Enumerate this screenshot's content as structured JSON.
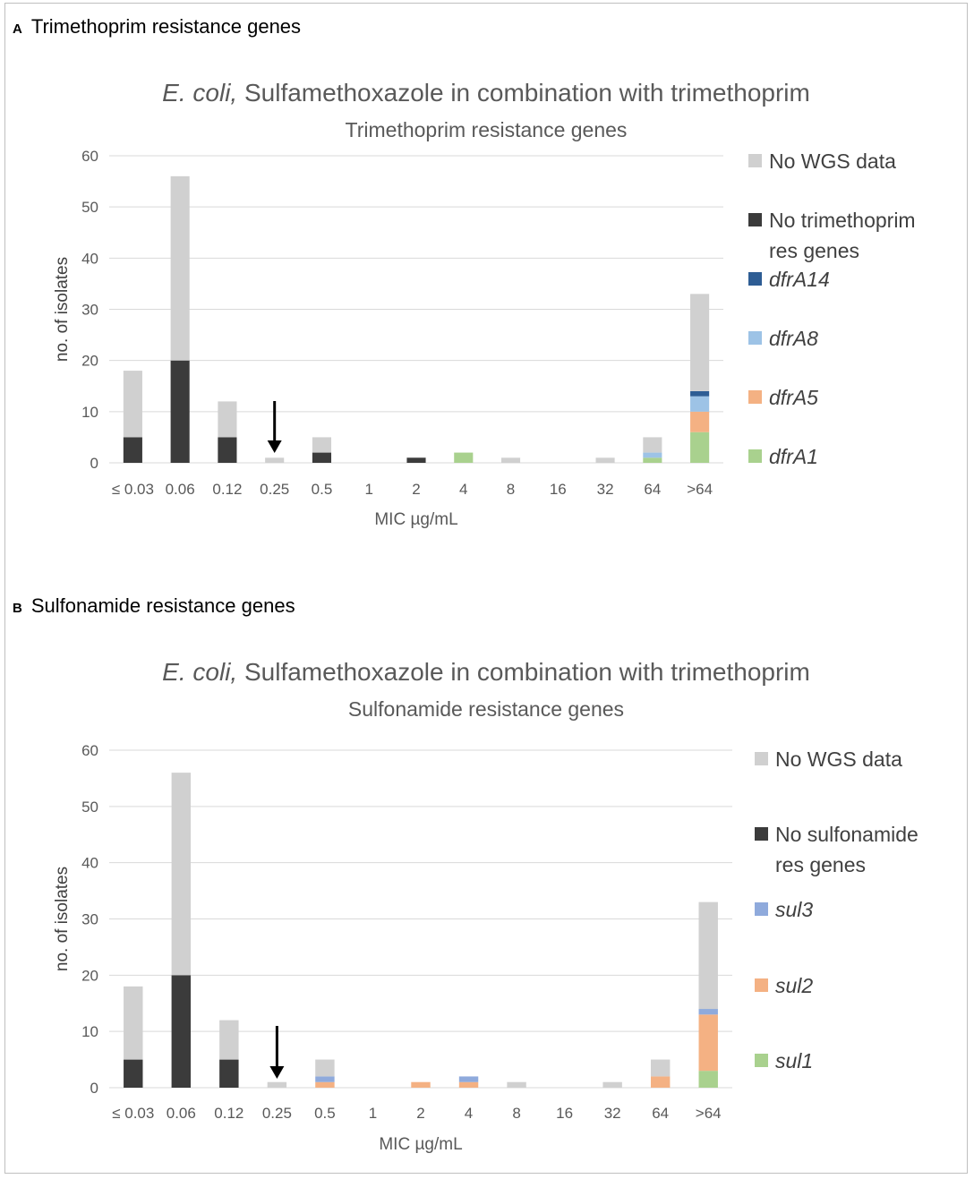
{
  "panels": [
    {
      "letter": "A",
      "heading": "Trimethoprim resistance genes",
      "chart_data": {
        "type": "bar",
        "stacked": true,
        "title_italic": "E. coli,",
        "title_rest": " Sulfamethoxazole in combination with trimethoprim",
        "subtitle": "Trimethoprim resistance genes",
        "xlabel": "MIC µg/mL",
        "ylabel": "no. of isolates",
        "ylim": [
          0,
          60
        ],
        "yticks": [
          0,
          10,
          20,
          30,
          40,
          50,
          60
        ],
        "categories": [
          "≤ 0.03",
          "0.06",
          "0.12",
          "0.25",
          "0.5",
          "1",
          "2",
          "4",
          "8",
          "16",
          "32",
          "64",
          ">64"
        ],
        "series": [
          {
            "name": "dfrA1",
            "italic": true,
            "color": "#a9d18e",
            "values": [
              0,
              0,
              0,
              0,
              0,
              0,
              0,
              2,
              0,
              0,
              0,
              1,
              6
            ]
          },
          {
            "name": "dfrA5",
            "italic": true,
            "color": "#f4b183",
            "values": [
              0,
              0,
              0,
              0,
              0,
              0,
              0,
              0,
              0,
              0,
              0,
              0,
              4
            ]
          },
          {
            "name": "dfrA8",
            "italic": true,
            "color": "#9dc3e6",
            "values": [
              0,
              0,
              0,
              0,
              0,
              0,
              0,
              0,
              0,
              0,
              0,
              1,
              3
            ]
          },
          {
            "name": "dfrA14",
            "italic": true,
            "color": "#2e5d94",
            "values": [
              0,
              0,
              0,
              0,
              0,
              0,
              0,
              0,
              0,
              0,
              0,
              0,
              1
            ]
          },
          {
            "name": "No trimethoprim res genes",
            "italic": false,
            "color": "#3b3b3b",
            "values": [
              5,
              20,
              5,
              0,
              2,
              0,
              1,
              0,
              0,
              0,
              0,
              0,
              0
            ]
          },
          {
            "name": "No WGS data",
            "italic": false,
            "color": "#d0d0d0",
            "values": [
              13,
              36,
              7,
              1,
              3,
              0,
              0,
              0,
              1,
              0,
              1,
              3,
              19
            ]
          }
        ],
        "legend_order": [
          "No WGS data",
          "No trimethoprim res genes",
          "dfrA14",
          "dfrA8",
          "dfrA5",
          "dfrA1"
        ],
        "legend_placement": "right",
        "annotation": {
          "type": "arrow",
          "category": "0.25",
          "meaning": "breakpoint"
        }
      }
    },
    {
      "letter": "B",
      "heading": "Sulfonamide resistance genes",
      "chart_data": {
        "type": "bar",
        "stacked": true,
        "title_italic": "E. coli,",
        "title_rest": " Sulfamethoxazole in combination with trimethoprim",
        "subtitle": "Sulfonamide resistance genes",
        "xlabel": "MIC µg/mL",
        "ylabel": "no. of isolates",
        "ylim": [
          0,
          60
        ],
        "yticks": [
          0,
          10,
          20,
          30,
          40,
          50,
          60
        ],
        "categories": [
          "≤ 0.03",
          "0.06",
          "0.12",
          "0.25",
          "0.5",
          "1",
          "2",
          "4",
          "8",
          "16",
          "32",
          "64",
          ">64"
        ],
        "series": [
          {
            "name": "sul1",
            "italic": true,
            "color": "#a9d18e",
            "values": [
              0,
              0,
              0,
              0,
              0,
              0,
              0,
              0,
              0,
              0,
              0,
              0,
              3
            ]
          },
          {
            "name": "sul2",
            "italic": true,
            "color": "#f4b183",
            "values": [
              0,
              0,
              0,
              0,
              1,
              0,
              1,
              1,
              0,
              0,
              0,
              2,
              10
            ]
          },
          {
            "name": "sul3",
            "italic": true,
            "color": "#8faadc",
            "values": [
              0,
              0,
              0,
              0,
              1,
              0,
              0,
              1,
              0,
              0,
              0,
              0,
              1
            ]
          },
          {
            "name": "No sulfonamide res genes",
            "italic": false,
            "color": "#3b3b3b",
            "values": [
              5,
              20,
              5,
              0,
              0,
              0,
              0,
              0,
              0,
              0,
              0,
              0,
              0
            ]
          },
          {
            "name": "No WGS data",
            "italic": false,
            "color": "#d0d0d0",
            "values": [
              13,
              36,
              7,
              1,
              3,
              0,
              0,
              0,
              1,
              0,
              1,
              3,
              19
            ]
          }
        ],
        "legend_order": [
          "No WGS data",
          "No sulfonamide res genes",
          "sul3",
          "sul2",
          "sul1"
        ],
        "legend_placement": "right",
        "annotation": {
          "type": "arrow",
          "category": "0.25",
          "meaning": "breakpoint"
        }
      }
    }
  ]
}
